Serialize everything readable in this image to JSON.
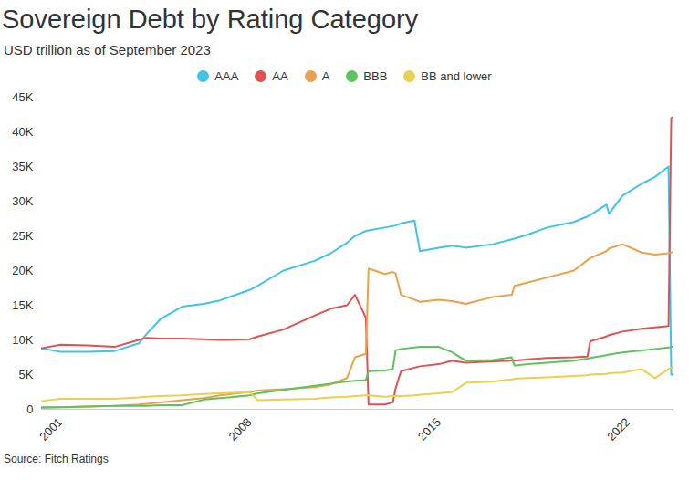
{
  "chart_data": {
    "type": "line",
    "title": "Sovereign Debt by Rating Category",
    "subtitle": "USD trillion as of September 2023",
    "source": "Source: Fitch Ratings",
    "legend": "top",
    "grid": false,
    "x": [
      2000.3,
      2001,
      2002,
      2003,
      2003.9,
      2004.2,
      2004.7,
      2005.5,
      2006.3,
      2006.9,
      2008,
      2008.3,
      2009.25,
      2010.4,
      2011,
      2011.6,
      2011.9,
      2012.3,
      2012.4,
      2013,
      2013.3,
      2013.4,
      2013.6,
      2014.1,
      2014.3,
      2015,
      2015.5,
      2016,
      2017,
      2017.7,
      2017.8,
      2018.3,
      2019,
      2020,
      2020.5,
      2020.6,
      2021.2,
      2021.3,
      2021.8,
      2022.5,
      2023,
      2023.5,
      2023.6,
      2023.7
    ],
    "xlim": [
      2000.3,
      2023.7
    ],
    "xticks": [
      2001,
      2008,
      2015,
      2022
    ],
    "ylim": [
      0,
      45000
    ],
    "yticks": [
      0,
      {
        "value": 5000,
        "label": "5K"
      },
      {
        "value": 10000,
        "label": "10K"
      },
      {
        "value": 15000,
        "label": "15K"
      },
      {
        "value": 20000,
        "label": "20K"
      },
      {
        "value": 25000,
        "label": "25K"
      },
      {
        "value": 30000,
        "label": "30K"
      },
      {
        "value": 35000,
        "label": "35K"
      },
      {
        "value": 40000,
        "label": "40K"
      },
      {
        "value": 45000,
        "label": "45K"
      }
    ],
    "series": [
      {
        "name": "AAA",
        "color": "#3fc3ea",
        "values": [
          8800,
          8300,
          8300,
          8400,
          9500,
          10900,
          13000,
          14800,
          15200,
          15700,
          17200,
          17800,
          20000,
          21400,
          22500,
          24000,
          25000,
          25700,
          25800,
          26200,
          26400,
          26500,
          26800,
          27200,
          22800,
          23300,
          23600,
          23300,
          23800,
          24500,
          24600,
          25200,
          26200,
          27000,
          27800,
          28000,
          29500,
          28200,
          30800,
          32500,
          33500,
          35000,
          5000,
          5000
        ]
      },
      {
        "name": "AA",
        "color": "#e05252",
        "values": [
          8800,
          9300,
          9200,
          9000,
          10000,
          10300,
          10200,
          10200,
          10100,
          10000,
          10100,
          10500,
          11500,
          13500,
          14500,
          15000,
          16500,
          13200,
          700,
          700,
          1000,
          3000,
          5500,
          6000,
          6200,
          6500,
          7000,
          6700,
          6900,
          7000,
          7000,
          7200,
          7400,
          7500,
          7600,
          9800,
          10500,
          10700,
          11200,
          11600,
          11800,
          12000,
          42000,
          42200
        ]
      },
      {
        "name": "A",
        "color": "#e9a24b",
        "values": [
          200,
          300,
          400,
          500,
          700,
          800,
          1000,
          1300,
          1600,
          2000,
          2500,
          2700,
          2900,
          3200,
          3600,
          4500,
          7500,
          8000,
          20300,
          19500,
          19800,
          19600,
          16500,
          15800,
          15500,
          15800,
          15600,
          15200,
          16200,
          16500,
          17800,
          18300,
          19000,
          20000,
          21500,
          21800,
          22800,
          23200,
          23800,
          22600,
          22300,
          22500,
          22600,
          22700
        ]
      },
      {
        "name": "BBB",
        "color": "#5ec35c",
        "values": [
          300,
          300,
          400,
          500,
          500,
          500,
          600,
          600,
          1400,
          1600,
          2000,
          2300,
          2800,
          3400,
          3700,
          4000,
          4100,
          4200,
          5500,
          5600,
          5800,
          8500,
          8700,
          8900,
          9000,
          9000,
          8200,
          7000,
          7100,
          7500,
          6300,
          6500,
          6700,
          7000,
          7300,
          7400,
          7800,
          7900,
          8200,
          8500,
          8700,
          8900,
          9000,
          9000
        ]
      },
      {
        "name": "BB and lower",
        "color": "#ebd04b",
        "values": [
          1200,
          1500,
          1500,
          1500,
          1700,
          1800,
          1900,
          2000,
          2200,
          2300,
          2500,
          1300,
          1400,
          1500,
          1700,
          1800,
          1900,
          2000,
          2000,
          1800,
          1900,
          1900,
          1900,
          2000,
          2100,
          2300,
          2500,
          3800,
          4000,
          4300,
          4400,
          4500,
          4600,
          4800,
          4900,
          5000,
          5100,
          5200,
          5300,
          5800,
          4500,
          5800,
          6000,
          6100
        ]
      }
    ]
  }
}
